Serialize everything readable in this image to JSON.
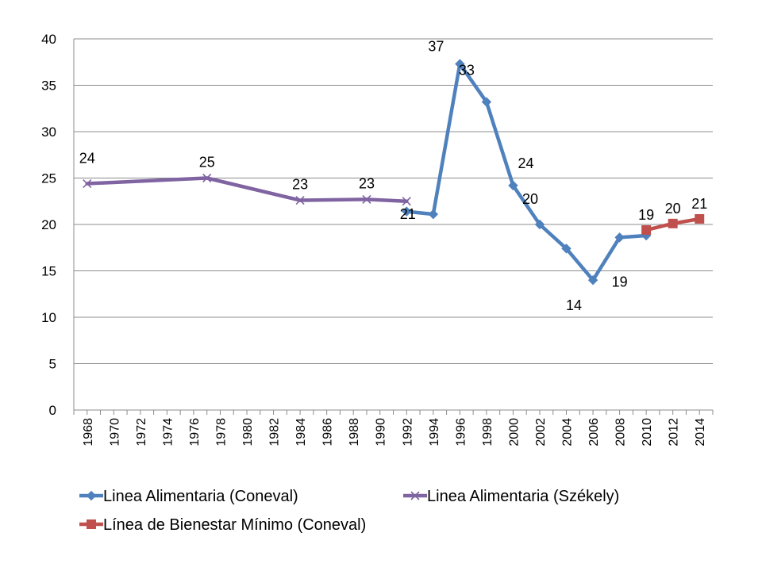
{
  "chart_data": {
    "type": "line",
    "title": "",
    "xlabel": "",
    "ylabel": "",
    "xlim": [
      1967,
      2015
    ],
    "ylim": [
      0,
      40
    ],
    "yticks": [
      0,
      5,
      10,
      15,
      20,
      25,
      30,
      35,
      40
    ],
    "xticks": [
      1968,
      1970,
      1972,
      1974,
      1976,
      1978,
      1980,
      1982,
      1984,
      1986,
      1988,
      1990,
      1992,
      1994,
      1996,
      1998,
      2000,
      2002,
      2004,
      2006,
      2008,
      2010,
      2012,
      2014
    ],
    "grid": "horizontal",
    "legend": "bottom",
    "series": [
      {
        "name": "Linea Alimentaria (Coneval)",
        "color": "#4f81bd",
        "marker": "diamond",
        "points": [
          {
            "x": 1992,
            "y": 21.4,
            "label": ""
          },
          {
            "x": 1994,
            "y": 21.1,
            "label": "21"
          },
          {
            "x": 1996,
            "y": 37.3,
            "label": "37"
          },
          {
            "x": 1998,
            "y": 33.2,
            "label": "33"
          },
          {
            "x": 2000,
            "y": 24.2,
            "label": "24"
          },
          {
            "x": 2002,
            "y": 20.0,
            "label": "20"
          },
          {
            "x": 2004,
            "y": 17.4,
            "label": ""
          },
          {
            "x": 2006,
            "y": 14.0,
            "label": "14"
          },
          {
            "x": 2008,
            "y": 18.6,
            "label": "19"
          },
          {
            "x": 2010,
            "y": 18.8,
            "label": ""
          }
        ]
      },
      {
        "name": "Linea Alimentaria (Székely)",
        "color": "#8064a2",
        "marker": "x",
        "points": [
          {
            "x": 1968,
            "y": 24.4,
            "label": "24"
          },
          {
            "x": 1977,
            "y": 25.0,
            "label": "25"
          },
          {
            "x": 1984,
            "y": 22.6,
            "label": "23"
          },
          {
            "x": 1989,
            "y": 22.7,
            "label": "23"
          },
          {
            "x": 1992,
            "y": 22.5,
            "label": ""
          }
        ]
      },
      {
        "name": "Línea de Bienestar Mínimo (Coneval)",
        "color": "#c0504d",
        "marker": "square",
        "points": [
          {
            "x": 2010,
            "y": 19.4,
            "label": "19"
          },
          {
            "x": 2012,
            "y": 20.1,
            "label": "20"
          },
          {
            "x": 2014,
            "y": 20.6,
            "label": "21"
          }
        ]
      }
    ]
  }
}
